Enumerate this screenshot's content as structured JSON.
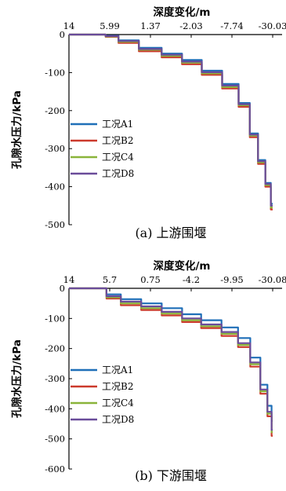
{
  "chart_data": [
    {
      "type": "line",
      "title": "",
      "xlabel": "深度变化/m",
      "ylabel": "孔隙水压力/kPa",
      "caption": "(a) 上游围堰",
      "x_tick_labels": [
        "14",
        "5.99",
        "1.37",
        "-2.03",
        "-7.74",
        "-30.03"
      ],
      "ylim": [
        -500,
        0
      ],
      "yticks": [
        0,
        -100,
        -200,
        -300,
        -400,
        -500
      ],
      "colors": [
        "#1f6fb8",
        "#cc3a2c",
        "#8ab43a",
        "#6a4c9a"
      ],
      "legend_position": "center-left",
      "series": [
        {
          "name": "工况A1",
          "x": [
            14,
            7.6,
            5.99,
            4.0,
            1.37,
            -0.5,
            -2.03,
            -5.0,
            -7.74,
            -15.0,
            -20.0,
            -24.0,
            -28.0,
            -30.03
          ],
          "values": [
            0,
            0,
            -3,
            -15,
            -35,
            -50,
            -67,
            -95,
            -130,
            -180,
            -260,
            -330,
            -390,
            -445
          ]
        },
        {
          "name": "工况B2",
          "x": [
            14,
            7.6,
            5.99,
            4.0,
            1.37,
            -0.5,
            -2.03,
            -5.0,
            -7.74,
            -15.0,
            -20.0,
            -24.0,
            -28.0,
            -30.03
          ],
          "values": [
            0,
            0,
            -6,
            -22,
            -44,
            -60,
            -78,
            -106,
            -142,
            -190,
            -270,
            -340,
            -400,
            -460
          ]
        },
        {
          "name": "工况C4",
          "x": [
            14,
            7.6,
            5.99,
            4.0,
            1.37,
            -0.5,
            -2.03,
            -5.0,
            -7.74,
            -15.0,
            -20.0,
            -24.0,
            -28.0,
            -30.03
          ],
          "values": [
            0,
            0,
            -5,
            -19,
            -40,
            -56,
            -74,
            -102,
            -138,
            -186,
            -266,
            -336,
            -396,
            -455
          ]
        },
        {
          "name": "工况D8",
          "x": [
            14,
            7.6,
            5.99,
            4.0,
            1.37,
            -0.5,
            -2.03,
            -5.0,
            -7.74,
            -15.0,
            -20.0,
            -24.0,
            -28.0,
            -30.03
          ],
          "values": [
            0,
            0,
            -4,
            -17,
            -38,
            -53,
            -71,
            -99,
            -134,
            -183,
            -263,
            -333,
            -393,
            -450
          ]
        }
      ]
    },
    {
      "type": "line",
      "title": "",
      "xlabel": "深度变化/m",
      "ylabel": "孔隙水压力/kPa",
      "caption": "(b) 下游围堰",
      "x_tick_labels": [
        "14",
        "5.7",
        "0.75",
        "-4.2",
        "-9.95",
        "-30.08"
      ],
      "ylim": [
        -600,
        0
      ],
      "yticks": [
        0,
        -100,
        -200,
        -300,
        -400,
        -500,
        -600
      ],
      "colors": [
        "#1f6fb8",
        "#cc3a2c",
        "#8ab43a",
        "#6a4c9a"
      ],
      "legend_position": "center-left",
      "series": [
        {
          "name": "工况A1",
          "x": [
            14,
            7.0,
            5.7,
            3.0,
            0.75,
            -2.0,
            -4.2,
            -7.0,
            -9.95,
            -16.0,
            -22.0,
            -26.0,
            -29.0,
            -30.08
          ],
          "values": [
            0,
            0,
            -20,
            -36,
            -50,
            -66,
            -86,
            -106,
            -130,
            -165,
            -230,
            -320,
            -390,
            -440
          ]
        },
        {
          "name": "工况B2",
          "x": [
            14,
            7.0,
            5.7,
            3.0,
            0.75,
            -2.0,
            -4.2,
            -7.0,
            -9.95,
            -16.0,
            -22.0,
            -26.0,
            -29.0,
            -30.08
          ],
          "values": [
            0,
            0,
            -34,
            -56,
            -72,
            -90,
            -112,
            -132,
            -158,
            -195,
            -260,
            -350,
            -425,
            -490
          ]
        },
        {
          "name": "工况C4",
          "x": [
            14,
            7.0,
            5.7,
            3.0,
            0.75,
            -2.0,
            -4.2,
            -7.0,
            -9.95,
            -16.0,
            -22.0,
            -26.0,
            -29.0,
            -30.08
          ],
          "values": [
            0,
            0,
            -30,
            -50,
            -66,
            -84,
            -106,
            -126,
            -151,
            -188,
            -252,
            -342,
            -416,
            -478
          ]
        },
        {
          "name": "工况D8",
          "x": [
            14,
            7.0,
            5.7,
            3.0,
            0.75,
            -2.0,
            -4.2,
            -7.0,
            -9.95,
            -16.0,
            -22.0,
            -26.0,
            -29.0,
            -30.08
          ],
          "values": [
            0,
            0,
            -26,
            -44,
            -60,
            -78,
            -100,
            -120,
            -145,
            -182,
            -246,
            -336,
            -410,
            -470
          ]
        }
      ]
    }
  ]
}
